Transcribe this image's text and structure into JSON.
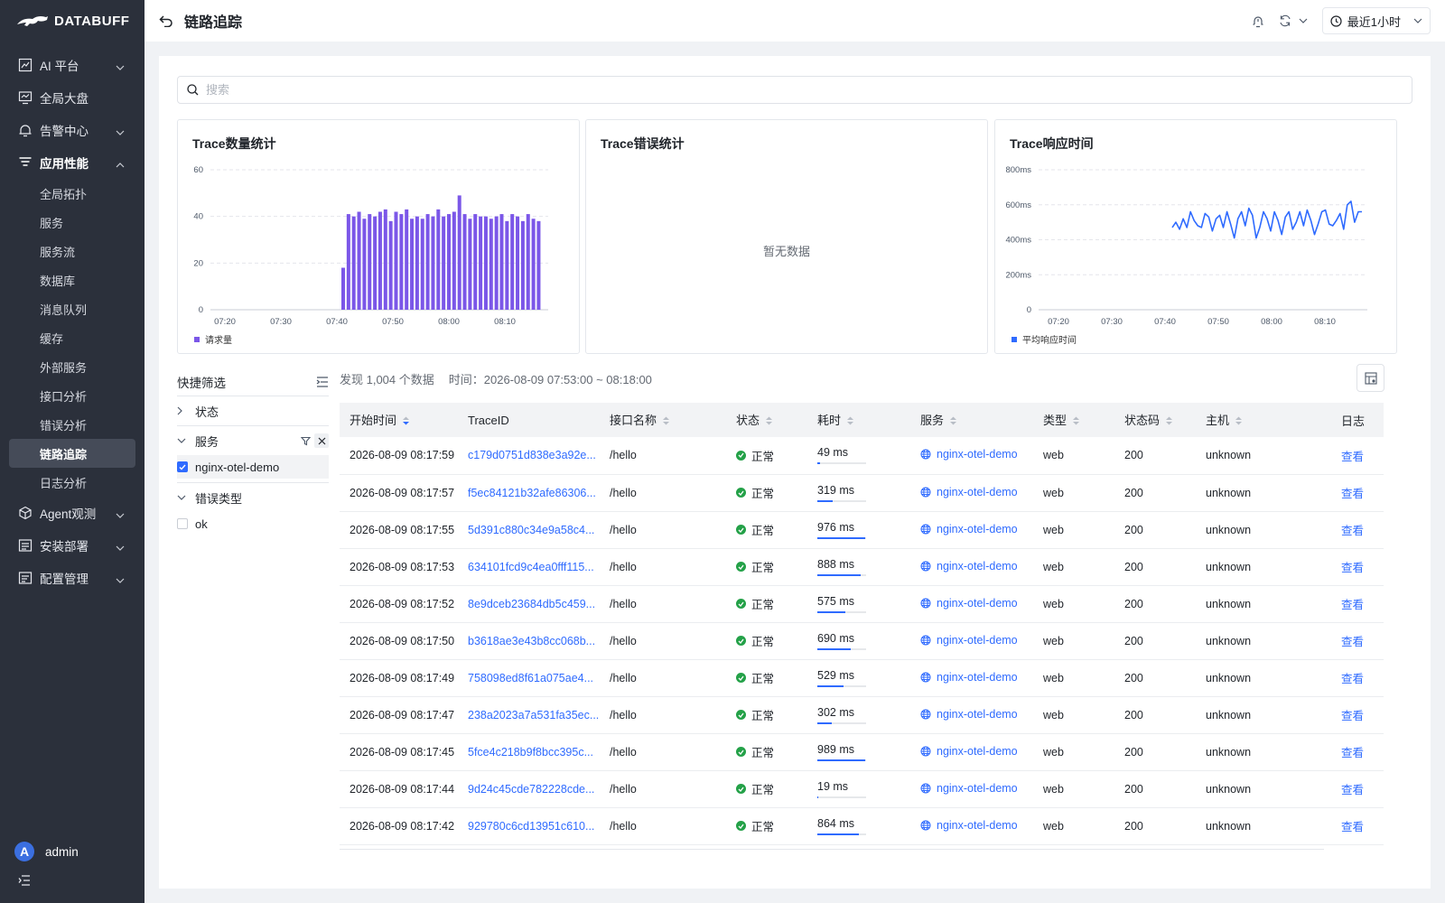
{
  "brand": {
    "name": "DATABUFF"
  },
  "sidebar": {
    "items": [
      {
        "label": "AI 平台",
        "icon": "ai-chart-icon",
        "expandable": true
      },
      {
        "label": "全局大盘",
        "icon": "monitor-icon",
        "expandable": false
      },
      {
        "label": "告警中心",
        "icon": "alarm-icon",
        "expandable": true
      },
      {
        "label": "应用性能",
        "icon": "filter-lines-icon",
        "expandable": true,
        "open": true
      }
    ],
    "sub_items": [
      "全局拓扑",
      "服务",
      "服务流",
      "数据库",
      "消息队列",
      "缓存",
      "外部服务",
      "接口分析",
      "错误分析",
      "链路追踪",
      "日志分析"
    ],
    "active_sub": "链路追踪",
    "bottom_items": [
      {
        "label": "Agent观测",
        "icon": "cube-icon"
      },
      {
        "label": "安装部署",
        "icon": "install-icon"
      },
      {
        "label": "配置管理",
        "icon": "config-icon"
      }
    ],
    "user": {
      "initial": "A",
      "name": "admin"
    }
  },
  "header": {
    "title": "链路追踪",
    "time_range": "最近1小时"
  },
  "search": {
    "placeholder": "搜索"
  },
  "cards": {
    "count": {
      "title": "Trace数量统计",
      "legend": "请求量"
    },
    "errors": {
      "title": "Trace错误统计",
      "empty_text": "暂无数据"
    },
    "latency": {
      "title": "Trace响应时间",
      "legend": "平均响应时间"
    }
  },
  "chart_data": [
    {
      "type": "bar",
      "title": "Trace数量统计",
      "series": [
        {
          "name": "请求量",
          "values": [
            18,
            41,
            40,
            42,
            39,
            41,
            40,
            42,
            43,
            38,
            42,
            41,
            43,
            39,
            40,
            39,
            41,
            40,
            43,
            40,
            41,
            42,
            49,
            41,
            39,
            41,
            40,
            40,
            39,
            40,
            41,
            38,
            41,
            40,
            38,
            41,
            39,
            38
          ]
        }
      ],
      "x_start": "07:40",
      "x_ticks": [
        "07:20",
        "07:30",
        "07:40",
        "07:50",
        "08:00",
        "08:10"
      ],
      "y_ticks": [
        0,
        20,
        40,
        60
      ],
      "ylim": [
        0,
        60
      ],
      "color": "#7b57e8"
    },
    {
      "type": "line",
      "title": "Trace响应时间",
      "series": [
        {
          "name": "平均响应时间",
          "values": [
            470,
            500,
            460,
            520,
            470,
            560,
            510,
            480,
            470,
            550,
            530,
            450,
            520,
            540,
            470,
            560,
            490,
            410,
            520,
            560,
            480,
            580,
            540,
            410,
            470,
            560,
            520,
            450,
            560,
            510,
            430,
            530,
            560,
            460,
            500,
            560,
            480,
            570,
            510,
            430,
            490,
            560,
            570,
            490,
            480,
            510,
            550,
            460,
            600,
            620,
            500,
            560,
            560
          ]
        }
      ],
      "x_ticks": [
        "07:20",
        "07:30",
        "07:40",
        "07:50",
        "08:00",
        "08:10"
      ],
      "y_ticks": [
        "0",
        "200ms",
        "400ms",
        "600ms",
        "800ms"
      ],
      "ylim": [
        0,
        800
      ],
      "color": "#2f6bff"
    }
  ],
  "filter": {
    "title": "快捷筛选",
    "groups": [
      {
        "label": "状态",
        "expanded": false,
        "options": []
      },
      {
        "label": "服务",
        "expanded": true,
        "options": [
          {
            "label": "nginx-otel-demo",
            "checked": true
          }
        ]
      },
      {
        "label": "错误类型",
        "expanded": true,
        "options": [
          {
            "label": "ok",
            "checked": false
          }
        ]
      }
    ]
  },
  "summary": {
    "found": "发现 1,004 个数据",
    "time": "时间：2026-08-09 07:53:00 ~ 08:18:00"
  },
  "table": {
    "headers": [
      "开始时间",
      "TraceID",
      "接口名称",
      "状态",
      "耗时",
      "服务",
      "类型",
      "状态码",
      "主机",
      "日志"
    ],
    "rows": [
      {
        "start": "2026-08-09 08:17:59",
        "trace_id": "c179d0751d838e3a92e...",
        "api": "/hello",
        "status": "正常",
        "duration": "49 ms",
        "dur_pct": 0.05,
        "service": "nginx-otel-demo",
        "type": "web",
        "code": "200",
        "host": "unknown",
        "log": "查看"
      },
      {
        "start": "2026-08-09 08:17:57",
        "trace_id": "f5ec84121b32afe86306...",
        "api": "/hello",
        "status": "正常",
        "duration": "319 ms",
        "dur_pct": 0.32,
        "service": "nginx-otel-demo",
        "type": "web",
        "code": "200",
        "host": "unknown",
        "log": "查看"
      },
      {
        "start": "2026-08-09 08:17:55",
        "trace_id": "5d391c880c34e9a58c4...",
        "api": "/hello",
        "status": "正常",
        "duration": "976 ms",
        "dur_pct": 0.98,
        "service": "nginx-otel-demo",
        "type": "web",
        "code": "200",
        "host": "unknown",
        "log": "查看"
      },
      {
        "start": "2026-08-09 08:17:53",
        "trace_id": "634101fcd9c4ea0fff115...",
        "api": "/hello",
        "status": "正常",
        "duration": "888 ms",
        "dur_pct": 0.89,
        "service": "nginx-otel-demo",
        "type": "web",
        "code": "200",
        "host": "unknown",
        "log": "查看"
      },
      {
        "start": "2026-08-09 08:17:52",
        "trace_id": "8e9dceb23684db5c459...",
        "api": "/hello",
        "status": "正常",
        "duration": "575 ms",
        "dur_pct": 0.58,
        "service": "nginx-otel-demo",
        "type": "web",
        "code": "200",
        "host": "unknown",
        "log": "查看"
      },
      {
        "start": "2026-08-09 08:17:50",
        "trace_id": "b3618ae3e43b8cc068b...",
        "api": "/hello",
        "status": "正常",
        "duration": "690 ms",
        "dur_pct": 0.69,
        "service": "nginx-otel-demo",
        "type": "web",
        "code": "200",
        "host": "unknown",
        "log": "查看"
      },
      {
        "start": "2026-08-09 08:17:49",
        "trace_id": "758098ed8f61a075ae4...",
        "api": "/hello",
        "status": "正常",
        "duration": "529 ms",
        "dur_pct": 0.53,
        "service": "nginx-otel-demo",
        "type": "web",
        "code": "200",
        "host": "unknown",
        "log": "查看"
      },
      {
        "start": "2026-08-09 08:17:47",
        "trace_id": "238a2023a7a531fa35ec...",
        "api": "/hello",
        "status": "正常",
        "duration": "302 ms",
        "dur_pct": 0.3,
        "service": "nginx-otel-demo",
        "type": "web",
        "code": "200",
        "host": "unknown",
        "log": "查看"
      },
      {
        "start": "2026-08-09 08:17:45",
        "trace_id": "5fce4c218b9f8bcc395c...",
        "api": "/hello",
        "status": "正常",
        "duration": "989 ms",
        "dur_pct": 0.99,
        "service": "nginx-otel-demo",
        "type": "web",
        "code": "200",
        "host": "unknown",
        "log": "查看"
      },
      {
        "start": "2026-08-09 08:17:44",
        "trace_id": "9d24c45cde782228cde...",
        "api": "/hello",
        "status": "正常",
        "duration": "19 ms",
        "dur_pct": 0.02,
        "service": "nginx-otel-demo",
        "type": "web",
        "code": "200",
        "host": "unknown",
        "log": "查看"
      },
      {
        "start": "2026-08-09 08:17:42",
        "trace_id": "929780c6cd13951c610...",
        "api": "/hello",
        "status": "正常",
        "duration": "864 ms",
        "dur_pct": 0.86,
        "service": "nginx-otel-demo",
        "type": "web",
        "code": "200",
        "host": "unknown",
        "log": "查看"
      }
    ]
  }
}
